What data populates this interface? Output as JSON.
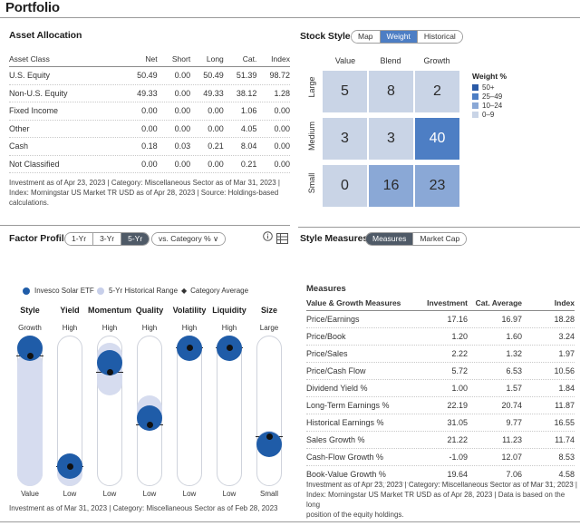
{
  "page_title": "Portfolio",
  "asset_allocation": {
    "title": "Asset Allocation",
    "headers": [
      "Asset Class",
      "Net",
      "Short",
      "Long",
      "Cat.",
      "Index"
    ],
    "rows": [
      {
        "label": "U.S. Equity",
        "net": "50.49",
        "short": "0.00",
        "long": "50.49",
        "cat": "51.39",
        "index": "98.72"
      },
      {
        "label": "Non-U.S. Equity",
        "net": "49.33",
        "short": "0.00",
        "long": "49.33",
        "cat": "38.12",
        "index": "1.28"
      },
      {
        "label": "Fixed Income",
        "net": "0.00",
        "short": "0.00",
        "long": "0.00",
        "cat": "1.06",
        "index": "0.00"
      },
      {
        "label": "Other",
        "net": "0.00",
        "short": "0.00",
        "long": "0.00",
        "cat": "4.05",
        "index": "0.00"
      },
      {
        "label": "Cash",
        "net": "0.18",
        "short": "0.03",
        "long": "0.21",
        "cat": "8.04",
        "index": "0.00"
      },
      {
        "label": "Not Classified",
        "net": "0.00",
        "short": "0.00",
        "long": "0.00",
        "cat": "0.21",
        "index": "0.00"
      }
    ],
    "note_lines": [
      "Investment as of Apr 23, 2023 | Category: Miscellaneous Sector as of Mar 31, 2023 |",
      "Index: Morningstar US Market TR USD as of Apr 28, 2023 | Source: Holdings-based",
      "calculations."
    ]
  },
  "stock_style": {
    "title": "Stock Style",
    "tabs": [
      "Map",
      "Weight",
      "Historical"
    ],
    "active_tab": "Weight",
    "columns": [
      "Value",
      "Blend",
      "Growth"
    ],
    "rows": [
      "Large",
      "Medium",
      "Small"
    ],
    "cells": [
      [
        "5",
        "8",
        "2"
      ],
      [
        "3",
        "3",
        "40"
      ],
      [
        "0",
        "16",
        "23"
      ]
    ],
    "cell_colors": [
      [
        "#c9d4e6",
        "#c9d4e6",
        "#c9d4e6"
      ],
      [
        "#c9d4e6",
        "#c9d4e6",
        "#4d7ec4"
      ],
      [
        "#c9d4e6",
        "#8aa8d6",
        "#8aa8d6"
      ]
    ],
    "legend_title": "Weight %",
    "legend": [
      {
        "label": "50+",
        "color": "#2a5aa6"
      },
      {
        "label": "25–49",
        "color": "#4d7ec4"
      },
      {
        "label": "10–24",
        "color": "#8aa8d6"
      },
      {
        "label": "0–9",
        "color": "#c9d4e6"
      }
    ]
  },
  "factor_profile": {
    "title": "Factor Profile",
    "periods": [
      "1-Yr",
      "3-Yr",
      "5-Yr"
    ],
    "active_period": "5-Yr",
    "compare_label": "vs. Category % ∨",
    "info_icon": "info-icon",
    "table_icon": "table-icon",
    "legend": [
      "Invesco Solar ETF",
      "5-Yr Historical Range",
      "Category Average"
    ],
    "factors": [
      {
        "name": "Style",
        "top": "Growth",
        "bottom": "Value",
        "fund": 0.95,
        "cat": 0.87,
        "range": [
          0.0,
          0.9
        ]
      },
      {
        "name": "Yield",
        "top": "High",
        "bottom": "Low",
        "fund": 0.13,
        "cat": 0.13,
        "range": [
          0.0,
          0.2
        ]
      },
      {
        "name": "Momentum",
        "top": "High",
        "bottom": "Low",
        "fund": 0.82,
        "cat": 0.76,
        "range": [
          0.6,
          0.95
        ]
      },
      {
        "name": "Quality",
        "top": "High",
        "bottom": "Low",
        "fund": 0.45,
        "cat": 0.41,
        "range": [
          0.37,
          0.6
        ]
      },
      {
        "name": "Volatility",
        "top": "High",
        "bottom": "Low",
        "fund": 0.97,
        "cat": 0.92,
        "range": [
          0.84,
          1.0
        ]
      },
      {
        "name": "Liquidity",
        "top": "High",
        "bottom": "Low",
        "fund": 0.97,
        "cat": 0.92,
        "range": [
          0.84,
          1.0
        ]
      },
      {
        "name": "Size",
        "top": "Large",
        "bottom": "Small",
        "fund": 0.28,
        "cat": 0.33,
        "range": [
          0.2,
          0.37
        ]
      }
    ],
    "note": "Investment as of Mar 31, 2023 | Category: Miscellaneous Sector as of Feb 28, 2023"
  },
  "style_measures": {
    "title": "Style Measures",
    "tabs": [
      "Measures",
      "Market Cap"
    ],
    "active_tab": "Measures",
    "table_title": "Measures",
    "headers": [
      "Value & Growth Measures",
      "Investment",
      "Cat. Average",
      "Index"
    ],
    "rows": [
      {
        "label": "Price/Earnings",
        "inv": "17.16",
        "cat": "16.97",
        "idx": "18.28"
      },
      {
        "label": "Price/Book",
        "inv": "1.20",
        "cat": "1.60",
        "idx": "3.24"
      },
      {
        "label": "Price/Sales",
        "inv": "2.22",
        "cat": "1.32",
        "idx": "1.97"
      },
      {
        "label": "Price/Cash Flow",
        "inv": "5.72",
        "cat": "6.53",
        "idx": "10.56"
      },
      {
        "label": "Dividend Yield %",
        "inv": "1.00",
        "cat": "1.57",
        "idx": "1.84"
      },
      {
        "label": "Long-Term Earnings %",
        "inv": "22.19",
        "cat": "20.74",
        "idx": "11.87"
      },
      {
        "label": "Historical Earnings %",
        "inv": "31.05",
        "cat": "9.77",
        "idx": "16.55"
      },
      {
        "label": "Sales Growth %",
        "inv": "21.22",
        "cat": "11.23",
        "idx": "11.74"
      },
      {
        "label": "Cash-Flow Growth %",
        "inv": "-1.09",
        "cat": "12.07",
        "idx": "8.53"
      },
      {
        "label": "Book-Value Growth %",
        "inv": "19.64",
        "cat": "7.06",
        "idx": "4.58"
      }
    ],
    "note_lines": [
      "Investment as of Apr 23, 2023 | Category: Miscellaneous Sector as of Mar 31, 2023 |",
      "Index: Morningstar US Market TR USD as of Apr 28, 2023 | Data is based on the long",
      "position of the equity holdings."
    ]
  }
}
